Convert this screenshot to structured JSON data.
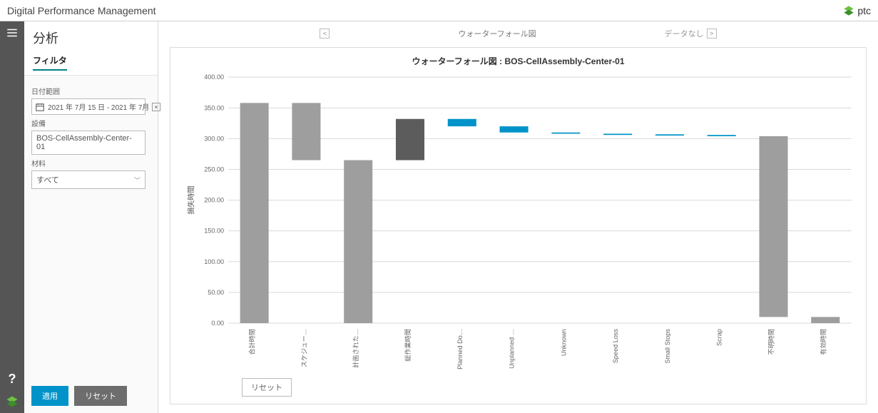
{
  "header": {
    "title": "Digital Performance Management",
    "brand": "ptc"
  },
  "sidebar": {
    "page_title": "分析",
    "tab_filter": "フィルタ",
    "date_label": "日付範囲",
    "date_value": "2021 年 7月 15 日 - 2021 年 7月",
    "equipment_label": "設備",
    "equipment_value": "BOS-CellAssembly-Center-01",
    "material_label": "材料",
    "material_value": "すべて",
    "apply": "適用",
    "reset": "リセット"
  },
  "toolbar": {
    "current": "ウォーターフォール図",
    "next_label": "データなし"
  },
  "chart": {
    "title": "ウォーターフォール図 : BOS-CellAssembly-Center-01",
    "y_axis_label": "損失時間",
    "reset": "リセット",
    "ylim": [
      0,
      400
    ],
    "ytick_step": 50,
    "yticks": [
      "0.00",
      "50.00",
      "100.00",
      "150.00",
      "200.00",
      "250.00",
      "300.00",
      "350.00",
      "400.00"
    ],
    "grid_color": "#d9d9d9",
    "background": "#ffffff",
    "label_fontsize": 9,
    "categories": [
      "合計時間",
      "スケジュー…",
      "計画された…",
      "総作業時間",
      "Planned Do…",
      "Unplanned …",
      "Unknown",
      "Speed Loss",
      "Small Stops",
      "Scrap",
      "不明時間",
      "有効時間"
    ],
    "bars": [
      {
        "bottom": 0,
        "top": 358,
        "color": "#9e9e9e"
      },
      {
        "bottom": 265,
        "top": 358,
        "color": "#9e9e9e"
      },
      {
        "bottom": 0,
        "top": 265,
        "color": "#9e9e9e"
      },
      {
        "bottom": 265,
        "top": 332,
        "color": "#5c5c5c"
      },
      {
        "bottom": 320,
        "top": 332,
        "color": "#0093c9"
      },
      {
        "bottom": 310,
        "top": 320,
        "color": "#0093c9"
      },
      {
        "bottom": 308,
        "top": 310,
        "color": "#0093c9"
      },
      {
        "bottom": 306,
        "top": 308,
        "color": "#0093c9"
      },
      {
        "bottom": 305,
        "top": 307,
        "color": "#0093c9"
      },
      {
        "bottom": 304,
        "top": 306,
        "color": "#0093c9"
      },
      {
        "bottom": 10,
        "top": 304,
        "color": "#9e9e9e"
      },
      {
        "bottom": 0,
        "top": 10,
        "color": "#9e9e9e"
      }
    ]
  }
}
